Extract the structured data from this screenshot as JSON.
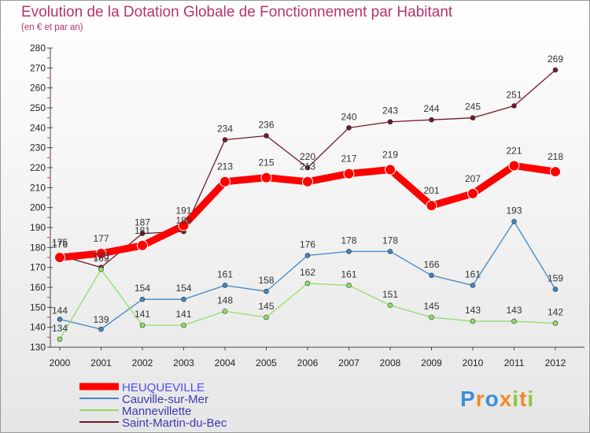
{
  "chart_data": {
    "type": "line",
    "title": "Evolution de la Dotation Globale de Fonctionnement par Habitant",
    "subtitle": "(en € et par an)",
    "xlabel": "",
    "ylabel": "",
    "ylim": [
      130,
      280
    ],
    "yticks": [
      130,
      140,
      150,
      160,
      170,
      180,
      190,
      200,
      210,
      220,
      230,
      240,
      250,
      260,
      270,
      280
    ],
    "categories": [
      "2000",
      "2001",
      "2002",
      "2003",
      "2004",
      "2005",
      "2006",
      "2007",
      "2008",
      "2009",
      "2010",
      "2011",
      "2012"
    ],
    "series": [
      {
        "name": "HEUQUEVILLE",
        "values": [
          175,
          177,
          181,
          191,
          213,
          215,
          213,
          217,
          219,
          201,
          207,
          221,
          218
        ],
        "color": "#ff0000",
        "legend_color": "#4d4dff",
        "emphasis": true
      },
      {
        "name": "Cauville-sur-Mer",
        "values": [
          144,
          139,
          154,
          154,
          161,
          158,
          176,
          178,
          178,
          166,
          161,
          193,
          159
        ],
        "color": "#3f86c7"
      },
      {
        "name": "Mannevillette",
        "values": [
          134,
          169,
          141,
          141,
          148,
          145,
          162,
          161,
          151,
          145,
          143,
          143,
          142
        ],
        "color": "#8fdf6a"
      },
      {
        "name": "Saint-Martin-du-Bec",
        "values": [
          176,
          170,
          187,
          188,
          234,
          236,
          220,
          240,
          243,
          244,
          245,
          251,
          269
        ],
        "color": "#6e1b24"
      }
    ],
    "grid": false,
    "legend_position": "bottom-left"
  },
  "branding": {
    "logo_letters": [
      "P",
      "r",
      "o",
      "x",
      "i",
      "t",
      "i"
    ],
    "logo_colors": [
      "#3b8fd8",
      "#f08a2c",
      "#3b8fd8",
      "#f08a2c",
      "#8cc63f",
      "#f08a2c",
      "#8cc63f"
    ]
  }
}
